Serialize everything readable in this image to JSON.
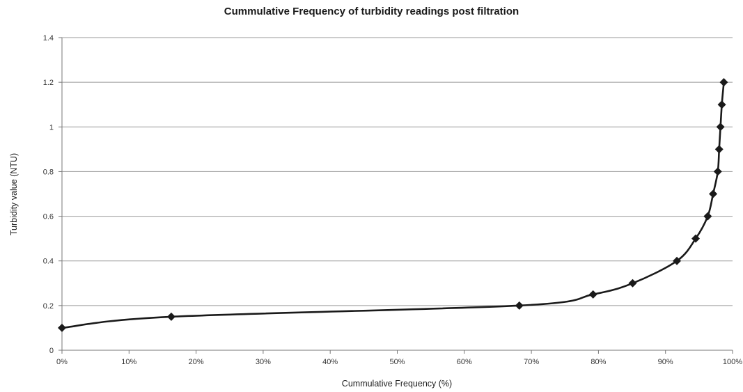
{
  "chart_data": {
    "type": "line",
    "title": "Cummulative Frequency of turbidity readings post filtration",
    "xlabel": "Cummulative Frequency (%)",
    "ylabel": "Turbidity value (NTU)",
    "xlim": [
      0,
      100
    ],
    "ylim": [
      0,
      1.4
    ],
    "x_ticks": [
      "0%",
      "10%",
      "20%",
      "30%",
      "40%",
      "50%",
      "60%",
      "70%",
      "80%",
      "90%",
      "100%"
    ],
    "y_ticks": [
      "0",
      "0.2",
      "0.4",
      "0.6",
      "0.8",
      "1",
      "1.2",
      "1.4"
    ],
    "grid": "horizontal",
    "series": [
      {
        "marker": "diamond",
        "color": "#1a1a1a",
        "x": [
          0,
          16.3,
          68.2,
          79.2,
          85.1,
          91.7,
          94.5,
          96.3,
          97.1,
          97.8,
          98.0,
          98.2,
          98.4,
          98.7
        ],
        "y": [
          0.1,
          0.15,
          0.2,
          0.25,
          0.3,
          0.4,
          0.5,
          0.6,
          0.7,
          0.8,
          0.9,
          1.0,
          1.1,
          1.2
        ]
      }
    ]
  }
}
